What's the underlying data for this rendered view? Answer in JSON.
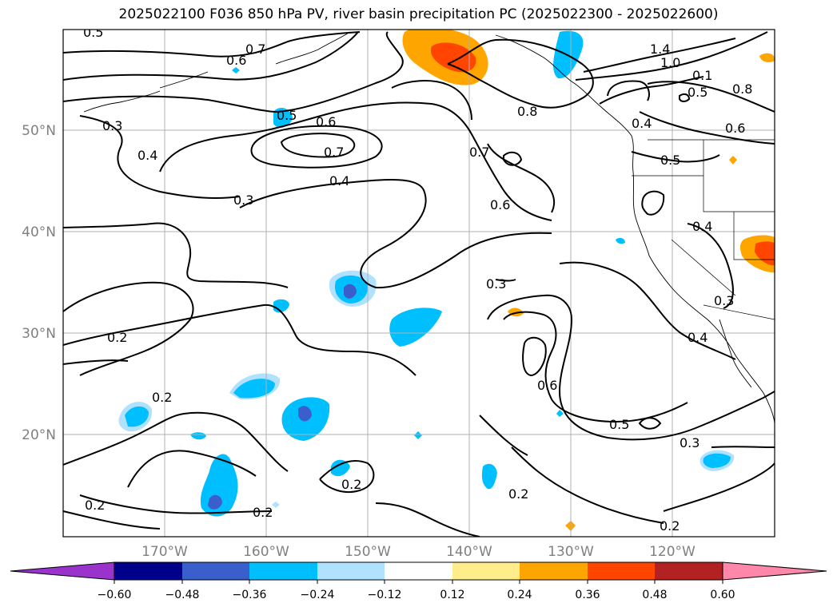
{
  "title": "2025022100 F036 850 hPa PV, river basin precipitation PC (2025022300 - 2025022600)",
  "map": {
    "lat_labels": [
      "50°N",
      "40°N",
      "30°N",
      "20°N"
    ],
    "lon_labels": [
      "170°W",
      "160°W",
      "150°W",
      "140°W",
      "130°W",
      "120°W"
    ],
    "contour_labels": [
      "0.5",
      "0.7",
      "0.6",
      "1.4",
      "1.0",
      "0.1",
      "0.5",
      "0.8",
      "0.5",
      "0.6",
      "0.3",
      "0.4",
      "0.7",
      "0.6",
      "0.4",
      "0.8",
      "0.4",
      "0.7",
      "0.6",
      "0.5",
      "0.3",
      "0.4",
      "0.2",
      "0.3",
      "0.2",
      "0.3",
      "0.4",
      "0.6",
      "0.5",
      "0.3",
      "0.2",
      "0.2",
      "0.2",
      "0.2",
      "0.2"
    ]
  },
  "colorbar": {
    "ticks": [
      "−0.60",
      "−0.48",
      "−0.36",
      "−0.24",
      "−0.12",
      "0.12",
      "0.24",
      "0.36",
      "0.48",
      "0.60"
    ],
    "colors": [
      "#9933cc",
      "#00008b",
      "#3a5fcd",
      "#00bfff",
      "#b0e2ff",
      "#ffffff",
      "#ffec8b",
      "#ffa500",
      "#ff4500",
      "#b22222",
      "#ff88aa"
    ]
  }
}
